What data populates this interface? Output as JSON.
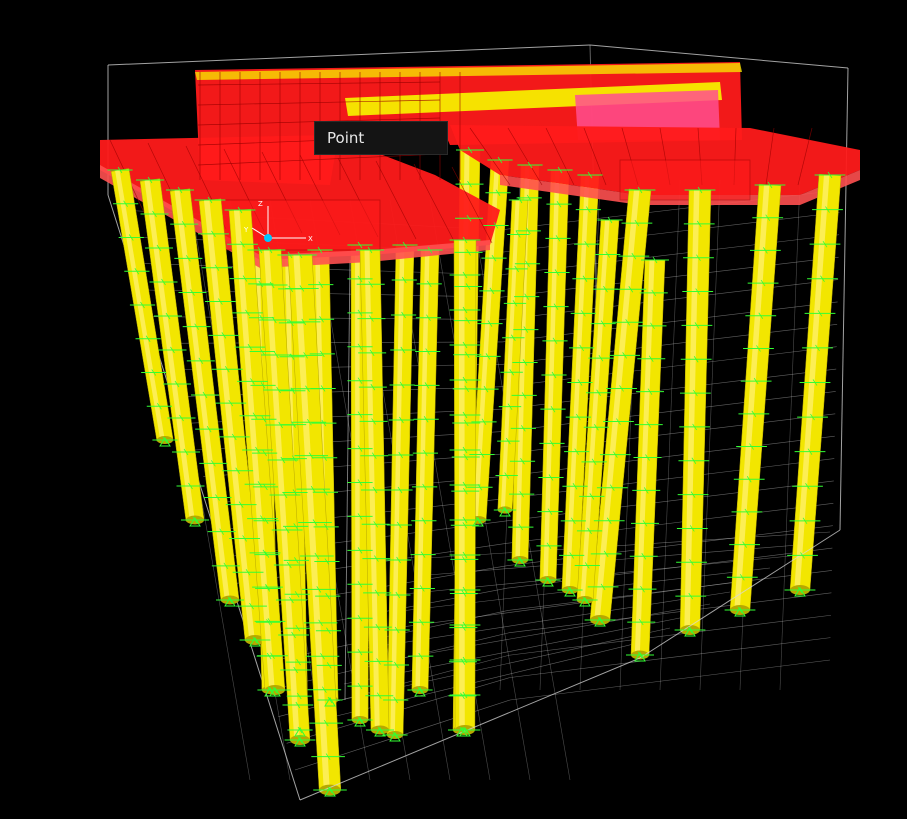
{
  "viewport": {
    "background": "#000000",
    "tooltip": {
      "label": "Point"
    },
    "axis_triad": {
      "z": "Z",
      "y": "Y",
      "x": "X"
    },
    "colors": {
      "pile": "#f2e600",
      "pile_highlight": "#fff06a",
      "pile_shadow": "#b7a800",
      "pile_cap": "#ff1a1a",
      "pile_cap_light": "#ff5050",
      "pile_cap_mesh": "#9a0000",
      "grid_line": "#d8d8d8",
      "support_marker": "#33ff33",
      "beam": "#f6e200",
      "shell_panel": "#ff4f8f"
    }
  }
}
